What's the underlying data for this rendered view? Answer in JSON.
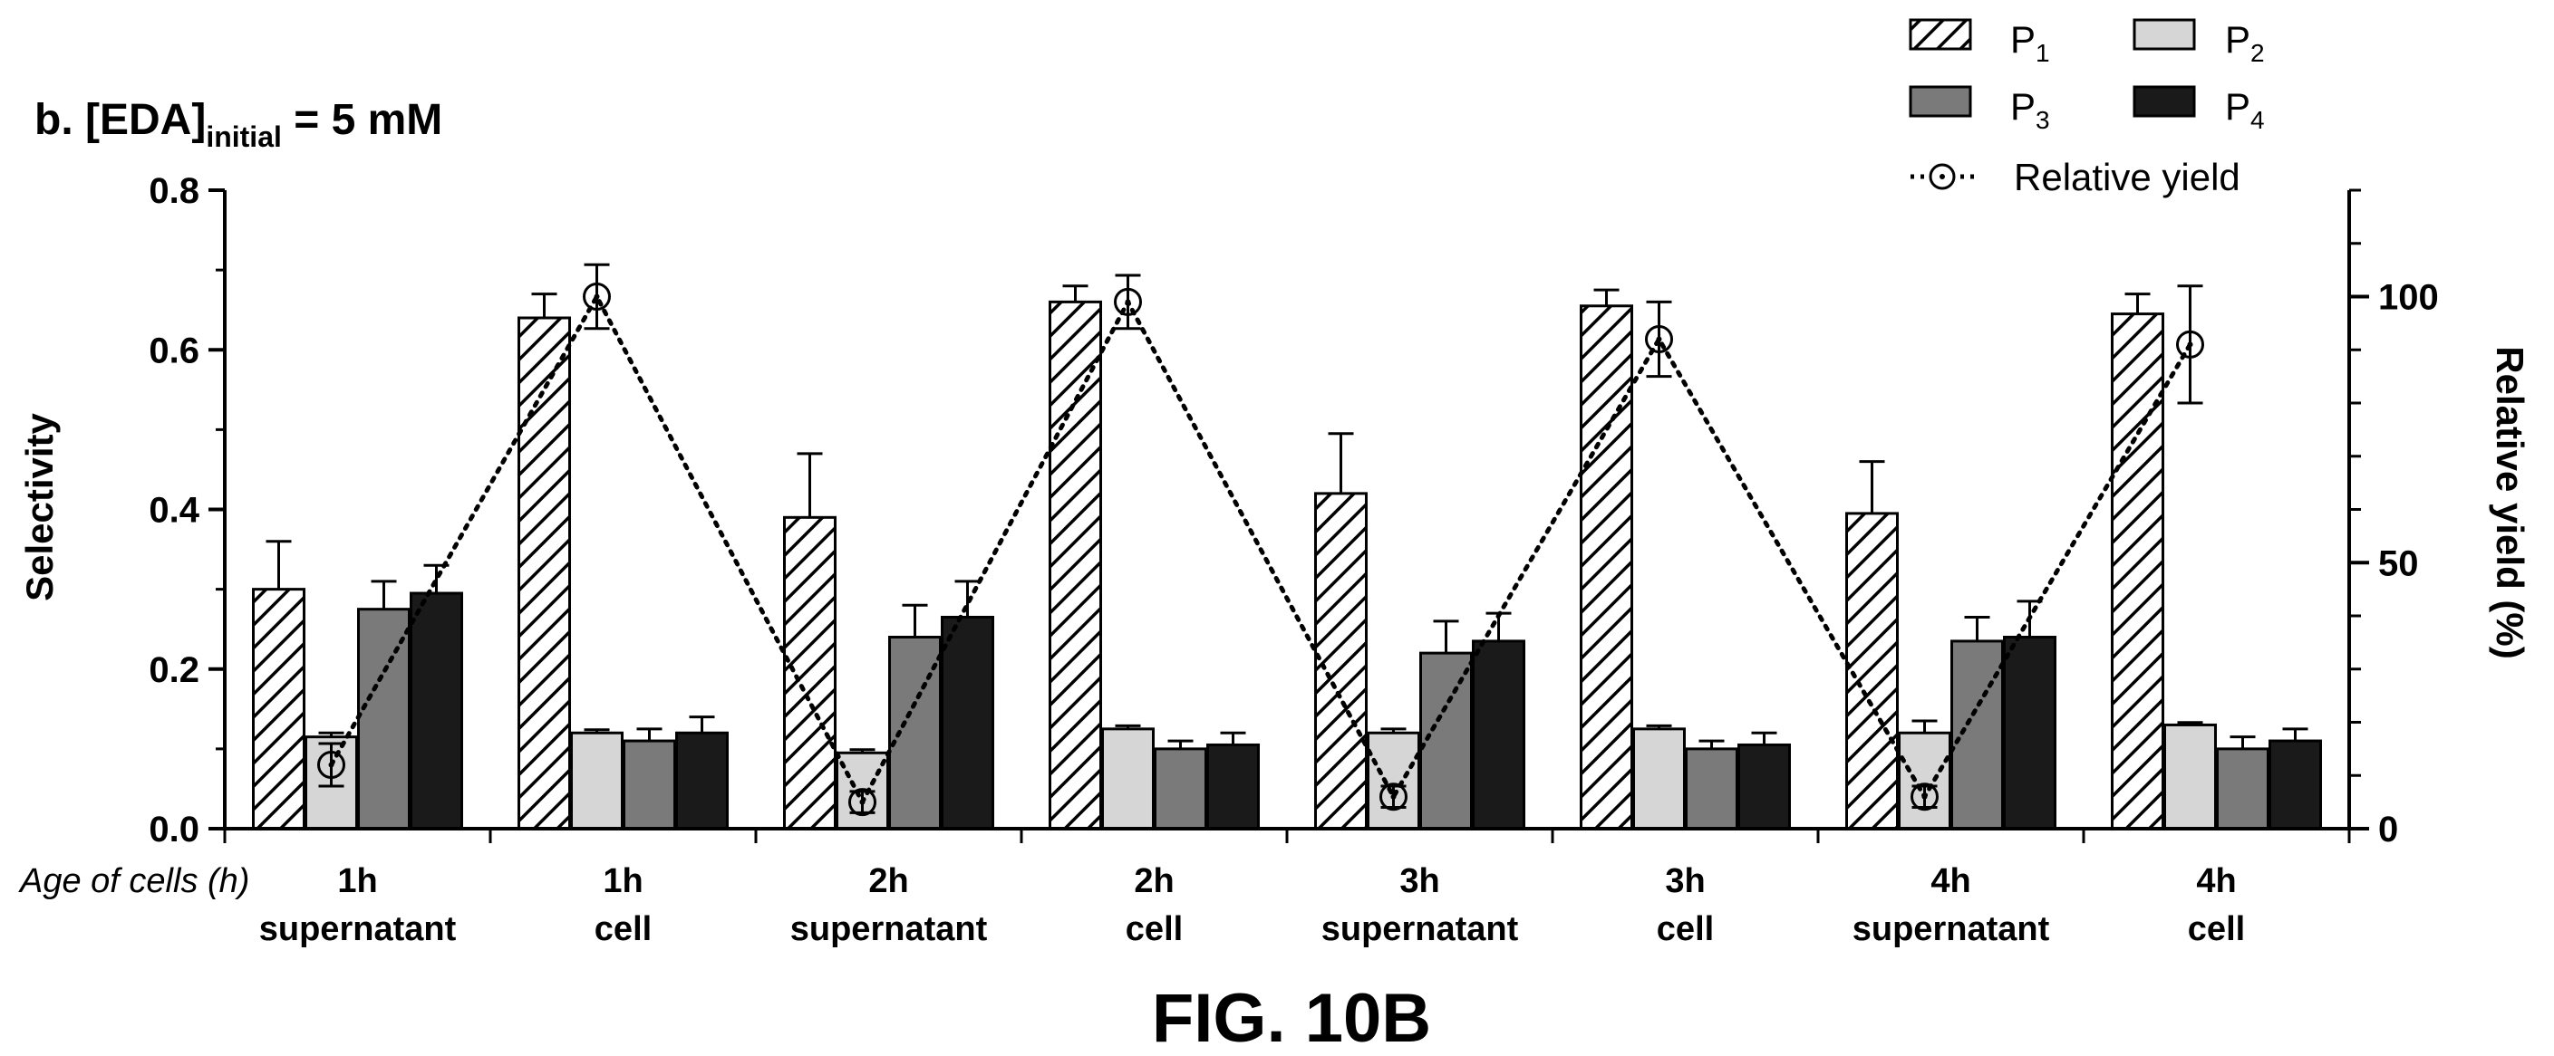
{
  "chart_data": {
    "type": "bar",
    "title": "b. [EDA]",
    "title_subscript": "initial",
    "title_suffix": " = 5 mM",
    "figure_caption": "FIG. 10B",
    "xlabel": "Age of cells (h)",
    "ylabel": "Selectivity",
    "y2label": "Relative yield (%)",
    "ylim": [
      0,
      0.8
    ],
    "y2lim": [
      0,
      120
    ],
    "yticks": [
      "0.0",
      "0.2",
      "0.4",
      "0.6",
      "0.8"
    ],
    "y2ticks": [
      "0",
      "50",
      "100"
    ],
    "grid": false,
    "legend_position": "top-right",
    "categories": [
      {
        "line1": "1h",
        "line2": "supernatant"
      },
      {
        "line1": "1h",
        "line2": "cell"
      },
      {
        "line1": "2h",
        "line2": "supernatant"
      },
      {
        "line1": "2h",
        "line2": "cell"
      },
      {
        "line1": "3h",
        "line2": "supernatant"
      },
      {
        "line1": "3h",
        "line2": "cell"
      },
      {
        "line1": "4h",
        "line2": "supernatant"
      },
      {
        "line1": "4h",
        "line2": "cell"
      }
    ],
    "series": [
      {
        "name": "P",
        "sub": "1",
        "pattern": "hatch",
        "color": "#ffffff",
        "values": [
          0.3,
          0.64,
          0.39,
          0.66,
          0.42,
          0.655,
          0.395,
          0.645
        ],
        "errors": [
          0.06,
          0.03,
          0.08,
          0.02,
          0.075,
          0.02,
          0.065,
          0.025
        ]
      },
      {
        "name": "P",
        "sub": "2",
        "pattern": "solid",
        "color": "#d6d6d6",
        "values": [
          0.115,
          0.12,
          0.095,
          0.125,
          0.12,
          0.125,
          0.12,
          0.13
        ],
        "errors": [
          0.005,
          0.004,
          0.004,
          0.004,
          0.005,
          0.004,
          0.015,
          0.003
        ]
      },
      {
        "name": "P",
        "sub": "3",
        "pattern": "solid",
        "color": "#7a7a7a",
        "values": [
          0.275,
          0.11,
          0.24,
          0.1,
          0.22,
          0.1,
          0.235,
          0.1
        ],
        "errors": [
          0.035,
          0.015,
          0.04,
          0.01,
          0.04,
          0.01,
          0.03,
          0.015
        ]
      },
      {
        "name": "P",
        "sub": "4",
        "pattern": "solid",
        "color": "#1a1a1a",
        "values": [
          0.295,
          0.12,
          0.265,
          0.105,
          0.235,
          0.105,
          0.24,
          0.11
        ],
        "errors": [
          0.035,
          0.02,
          0.045,
          0.015,
          0.035,
          0.015,
          0.045,
          0.015
        ]
      }
    ],
    "line_series": {
      "name": "Relative yield",
      "axis": "right",
      "values": [
        12,
        100,
        5,
        99,
        6,
        92,
        6,
        91
      ],
      "errors": [
        4,
        6,
        2,
        5,
        2,
        7,
        2,
        11
      ]
    }
  }
}
